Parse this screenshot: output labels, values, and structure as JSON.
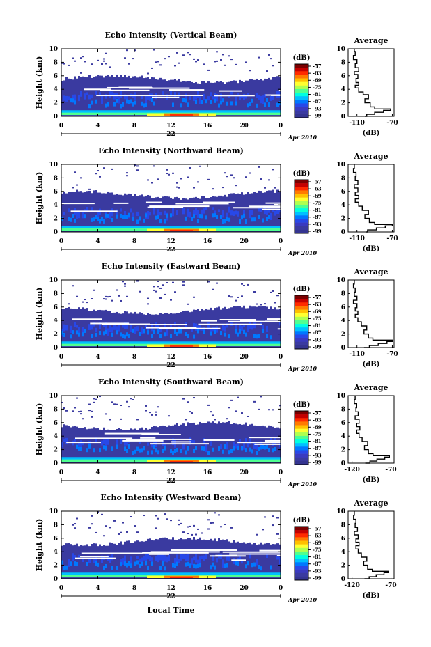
{
  "panels": [
    {
      "title": "Echo Intensity (Vertical Beam)",
      "avg_xticks": [
        "-110",
        "-70"
      ],
      "avg_xlim": [
        -120,
        -68
      ],
      "profile": [
        [
          -101,
          0
        ],
        [
          -99,
          0.3
        ],
        [
          -90,
          0.6
        ],
        [
          -80,
          0.9
        ],
        [
          -72,
          1.1
        ],
        [
          -90,
          1.4
        ],
        [
          -95,
          2
        ],
        [
          -101,
          2.6
        ],
        [
          -97,
          3.2
        ],
        [
          -103,
          3.6
        ],
        [
          -108,
          4.2
        ],
        [
          -112,
          4.6
        ],
        [
          -108,
          5
        ],
        [
          -111,
          5.6
        ],
        [
          -109,
          6.2
        ],
        [
          -113,
          6.6
        ],
        [
          -108,
          7.2
        ],
        [
          -112,
          7.8
        ],
        [
          -110,
          8.4
        ],
        [
          -114,
          9
        ],
        [
          -112,
          9.6
        ],
        [
          -113,
          10
        ]
      ]
    },
    {
      "title": "Echo Intensity (Northward Beam)",
      "avg_xticks": [
        "-110",
        "-70"
      ],
      "avg_xlim": [
        -120,
        -68
      ],
      "profile": [
        [
          -100,
          0
        ],
        [
          -98,
          0.3
        ],
        [
          -88,
          0.6
        ],
        [
          -78,
          0.9
        ],
        [
          -70,
          1.1
        ],
        [
          -90,
          1.4
        ],
        [
          -96,
          2
        ],
        [
          -101,
          2.6
        ],
        [
          -97,
          3.2
        ],
        [
          -104,
          3.8
        ],
        [
          -108,
          4.4
        ],
        [
          -112,
          4.9
        ],
        [
          -108,
          5.4
        ],
        [
          -112,
          5.9
        ],
        [
          -109,
          6.5
        ],
        [
          -113,
          7
        ],
        [
          -109,
          7.6
        ],
        [
          -112,
          8.2
        ],
        [
          -111,
          8.8
        ],
        [
          -114,
          9.4
        ],
        [
          -113,
          10
        ]
      ]
    },
    {
      "title": "Echo Intensity (Eastward Beam)",
      "avg_xticks": [
        "-110",
        "-70"
      ],
      "avg_xlim": [
        -120,
        -68
      ],
      "profile": [
        [
          -102,
          0
        ],
        [
          -96,
          0.3
        ],
        [
          -86,
          0.6
        ],
        [
          -76,
          0.9
        ],
        [
          -70,
          1.1
        ],
        [
          -92,
          1.4
        ],
        [
          -97,
          2
        ],
        [
          -102,
          2.6
        ],
        [
          -99,
          3.2
        ],
        [
          -105,
          3.8
        ],
        [
          -109,
          4.4
        ],
        [
          -112,
          4.9
        ],
        [
          -109,
          5.4
        ],
        [
          -112,
          5.9
        ],
        [
          -110,
          6.5
        ],
        [
          -114,
          7
        ],
        [
          -110,
          7.6
        ],
        [
          -113,
          8.2
        ],
        [
          -112,
          8.8
        ],
        [
          -114,
          9.4
        ],
        [
          -113,
          10
        ]
      ]
    },
    {
      "title": "Echo Intensity (Southward Beam)",
      "avg_xticks": [
        "-120",
        "-70"
      ],
      "avg_xlim": [
        -125,
        -66
      ],
      "profile": [
        [
          -103,
          0
        ],
        [
          -97,
          0.3
        ],
        [
          -88,
          0.6
        ],
        [
          -78,
          0.9
        ],
        [
          -72,
          1.1
        ],
        [
          -93,
          1.4
        ],
        [
          -99,
          2
        ],
        [
          -104,
          2.6
        ],
        [
          -100,
          3.2
        ],
        [
          -107,
          3.8
        ],
        [
          -111,
          4.4
        ],
        [
          -114,
          4.9
        ],
        [
          -110,
          5.4
        ],
        [
          -114,
          5.9
        ],
        [
          -111,
          6.5
        ],
        [
          -116,
          7
        ],
        [
          -112,
          7.6
        ],
        [
          -115,
          8.2
        ],
        [
          -114,
          8.8
        ],
        [
          -117,
          9.4
        ],
        [
          -116,
          10
        ]
      ]
    },
    {
      "title": "Echo Intensity (Westward Beam)",
      "avg_xticks": [
        "-120",
        "-70"
      ],
      "avg_xlim": [
        -125,
        -66
      ],
      "profile": [
        [
          -104,
          0
        ],
        [
          -98,
          0.3
        ],
        [
          -89,
          0.6
        ],
        [
          -79,
          0.9
        ],
        [
          -73,
          1.1
        ],
        [
          -94,
          1.4
        ],
        [
          -100,
          2
        ],
        [
          -105,
          2.6
        ],
        [
          -101,
          3.2
        ],
        [
          -108,
          3.8
        ],
        [
          -112,
          4.4
        ],
        [
          -115,
          4.9
        ],
        [
          -111,
          5.4
        ],
        [
          -115,
          5.9
        ],
        [
          -112,
          6.5
        ],
        [
          -117,
          7
        ],
        [
          -113,
          7.6
        ],
        [
          -116,
          8.2
        ],
        [
          -115,
          8.8
        ],
        [
          -118,
          9.4
        ],
        [
          -117,
          10
        ]
      ]
    }
  ],
  "chart_data": {
    "type": "heatmap",
    "ylabel": "Height (km)",
    "xlabel": "Local Time",
    "avg_title": "Average",
    "avg_xlabel": "(dB)",
    "cb_unit": "(dB)",
    "date_label": "Apr 2010",
    "day_label": "22",
    "xticks": [
      "0",
      "4",
      "8",
      "12",
      "16",
      "20",
      "0"
    ],
    "yticks": [
      "0",
      "2",
      "4",
      "6",
      "8",
      "10"
    ],
    "ylim": [
      0,
      10
    ],
    "xlim_hours": [
      0,
      24
    ],
    "colorbar_ticks": [
      "-57",
      "-63",
      "-69",
      "-75",
      "-81",
      "-87",
      "-93",
      "-99"
    ],
    "colors": [
      "#7b0000",
      "#c40000",
      "#ff2a00",
      "#ff7a00",
      "#ffc000",
      "#ffff30",
      "#b0ff50",
      "#50ff90",
      "#00ffe0",
      "#00c0ff",
      "#0078ff",
      "#2848e8",
      "#3a3ac0",
      "#3a3aa0",
      "#343490"
    ]
  }
}
